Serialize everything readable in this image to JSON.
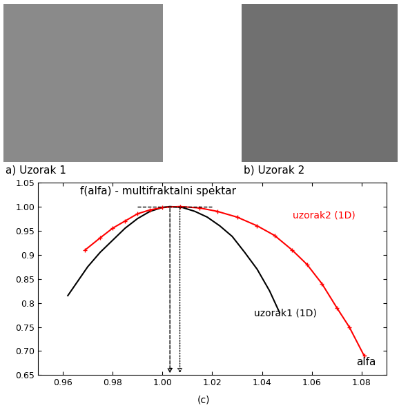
{
  "images": [
    {
      "caption": "a) Uzorak 1"
    },
    {
      "caption": "b) Uzorak 2"
    }
  ],
  "chart_data": {
    "type": "line",
    "title": "f(alfa) - multifraktalni spektar",
    "x_label": "alfa",
    "caption": "(c)",
    "series": [
      {
        "name": "uzorak1 (1D)",
        "color": "#000000",
        "line_style": "solid",
        "x": [
          0.962,
          0.966,
          0.97,
          0.975,
          0.98,
          0.985,
          0.99,
          0.995,
          1.0,
          1.003,
          1.008,
          1.013,
          1.018,
          1.023,
          1.028,
          1.033,
          1.038,
          1.043,
          1.047
        ],
        "values": [
          0.815,
          0.845,
          0.875,
          0.905,
          0.93,
          0.955,
          0.975,
          0.99,
          0.998,
          1.0,
          0.998,
          0.99,
          0.978,
          0.96,
          0.938,
          0.905,
          0.87,
          0.825,
          0.78
        ]
      },
      {
        "name": "uzorak2 (1D)",
        "color": "#ff0000",
        "line_style": "solid",
        "marker": "plus",
        "x": [
          0.969,
          0.975,
          0.98,
          0.985,
          0.99,
          0.995,
          1.0,
          1.007,
          1.015,
          1.022,
          1.03,
          1.038,
          1.045,
          1.052,
          1.058,
          1.064,
          1.07,
          1.075,
          1.081
        ],
        "values": [
          0.91,
          0.935,
          0.955,
          0.97,
          0.985,
          0.993,
          0.998,
          1.0,
          0.997,
          0.99,
          0.978,
          0.96,
          0.94,
          0.91,
          0.88,
          0.84,
          0.79,
          0.75,
          0.69
        ]
      }
    ],
    "peak_alfa": [
      1.003,
      1.007
    ],
    "peak_f": 1.0,
    "peak_line_x": [
      0.99,
      1.02
    ],
    "xlim": [
      0.95,
      1.09
    ],
    "xticks": [
      0.96,
      0.98,
      {
        "value": 1.0,
        "label": "1.00"
      },
      1.02,
      1.04,
      1.06,
      1.08
    ],
    "ylim": [
      0.65,
      1.05
    ],
    "yticks": [
      0.65,
      {
        "value": 0.7,
        "label": "0.70"
      },
      0.75,
      0.8,
      0.85,
      0.9,
      0.95,
      {
        "value": 1.0,
        "label": "1.00"
      },
      1.05
    ],
    "grid": false
  }
}
